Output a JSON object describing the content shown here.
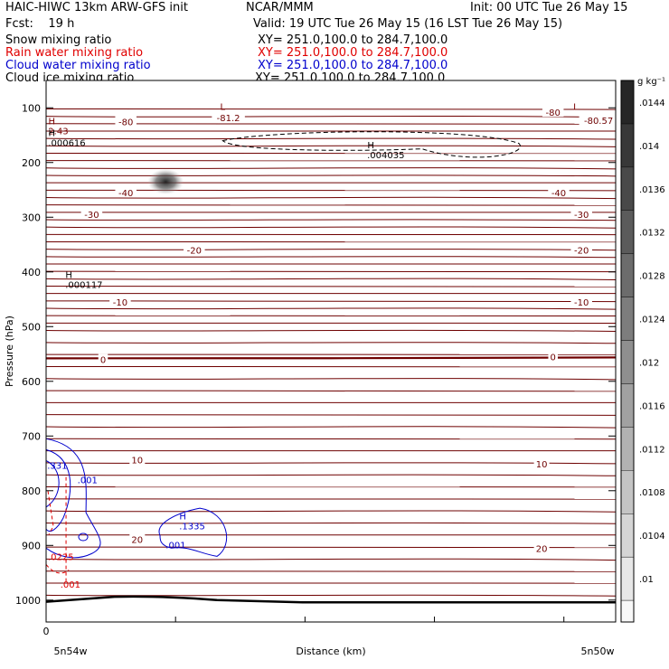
{
  "header": {
    "model": "HAIC-HIWC 13km ARW-GFS init",
    "org": "NCAR/MMM",
    "init": "Init: 00 UTC Tue 26 May 15",
    "fcst": "Fcst:    19 h",
    "valid": "Valid: 19 UTC Tue 26 May 15 (16 LST Tue 26 May 15)"
  },
  "fields": [
    {
      "name": "Snow mixing ratio",
      "xy": "XY= 251.0,100.0 to 284.7,100.0",
      "color": "#000000"
    },
    {
      "name": "Rain water mixing ratio",
      "xy": "XY= 251.0,100.0 to 284.7,100.0",
      "color": "#e00000"
    },
    {
      "name": "Cloud water mixing ratio",
      "xy": "XY= 251.0,100.0 to 284.7,100.0",
      "color": "#0000cc"
    },
    {
      "name": "Cloud ice mixing ratio",
      "xy": "XY= 251.0,100.0 to 284.7,100.0",
      "color": "#000000"
    }
  ],
  "chart_data": {
    "type": "contour-cross-section",
    "ylabel": "Pressure (hPa)",
    "xlabel": "Distance (km)",
    "x_start_label": "5n54w",
    "x_end_label": "5n50w",
    "x_tick_label": "0",
    "y_ticks": [
      100,
      200,
      300,
      400,
      500,
      600,
      700,
      800,
      900,
      1000
    ],
    "ylim": [
      1040,
      50
    ],
    "colorbar": {
      "unit": "g kg⁻¹",
      "ticks": [
        0.01,
        0.0104,
        0.0108,
        0.0112,
        0.0116,
        0.012,
        0.0124,
        0.0128,
        0.0132,
        0.0136,
        0.014,
        0.0144
      ],
      "tick_labels": [
        ".01",
        ".0104",
        ".0108",
        ".0112",
        ".0116",
        ".012",
        ".0124",
        ".0128",
        ".0132",
        ".0136",
        ".014",
        ".0144"
      ]
    },
    "temperature_labels": [
      {
        "value": "-80",
        "p": 125,
        "x": 0.14
      },
      {
        "value": "-81.2",
        "p": 118,
        "x": 0.32
      },
      {
        "value": "-80",
        "p": 108,
        "x": 0.89
      },
      {
        "value": "-80.57",
        "p": 123,
        "x": 0.97
      },
      {
        "value": "-40",
        "p": 255,
        "x": 0.14
      },
      {
        "value": "-40",
        "p": 255,
        "x": 0.9
      },
      {
        "value": "-30",
        "p": 295,
        "x": 0.08
      },
      {
        "value": "-30",
        "p": 295,
        "x": 0.94
      },
      {
        "value": "-20",
        "p": 360,
        "x": 0.26
      },
      {
        "value": "-20",
        "p": 360,
        "x": 0.94
      },
      {
        "value": "-10",
        "p": 455,
        "x": 0.13
      },
      {
        "value": "-10",
        "p": 455,
        "x": 0.94
      },
      {
        "value": "0",
        "p": 560,
        "x": 0.1
      },
      {
        "value": "0",
        "p": 555,
        "x": 0.89
      },
      {
        "value": "10",
        "p": 743,
        "x": 0.16
      },
      {
        "value": "10",
        "p": 751,
        "x": 0.87
      },
      {
        "value": "20",
        "p": 889,
        "x": 0.16
      },
      {
        "value": "20",
        "p": 905,
        "x": 0.87
      }
    ],
    "extrema": [
      {
        "kind": "L",
        "p": 104,
        "x": 0.31,
        "color": "#7a0000"
      },
      {
        "kind": "L",
        "p": 104,
        "x": 0.93,
        "color": "#7a0000"
      },
      {
        "kind": "H",
        "p": 130,
        "x": 0.01,
        "value": "2.43",
        "color": "#7a0000"
      },
      {
        "kind": "H",
        "p": 152,
        "x": 0.01,
        "value": ".000616",
        "color": "#000000"
      },
      {
        "kind": "H",
        "p": 174,
        "x": 0.57,
        "value": ".004035",
        "color": "#000000"
      },
      {
        "kind": "H",
        "p": 411,
        "x": 0.04,
        "value": ".000117",
        "color": "#000000"
      },
      {
        "kind": "H",
        "p": 852,
        "x": 0.24,
        "value": ".1335",
        "color": "#0000cc"
      }
    ],
    "cloud_water_labels": [
      ".331",
      ".001",
      ".001"
    ],
    "rain_labels": [
      ".0225",
      ".001"
    ],
    "snow_max_location": {
      "p": 235,
      "x": 0.21
    }
  }
}
